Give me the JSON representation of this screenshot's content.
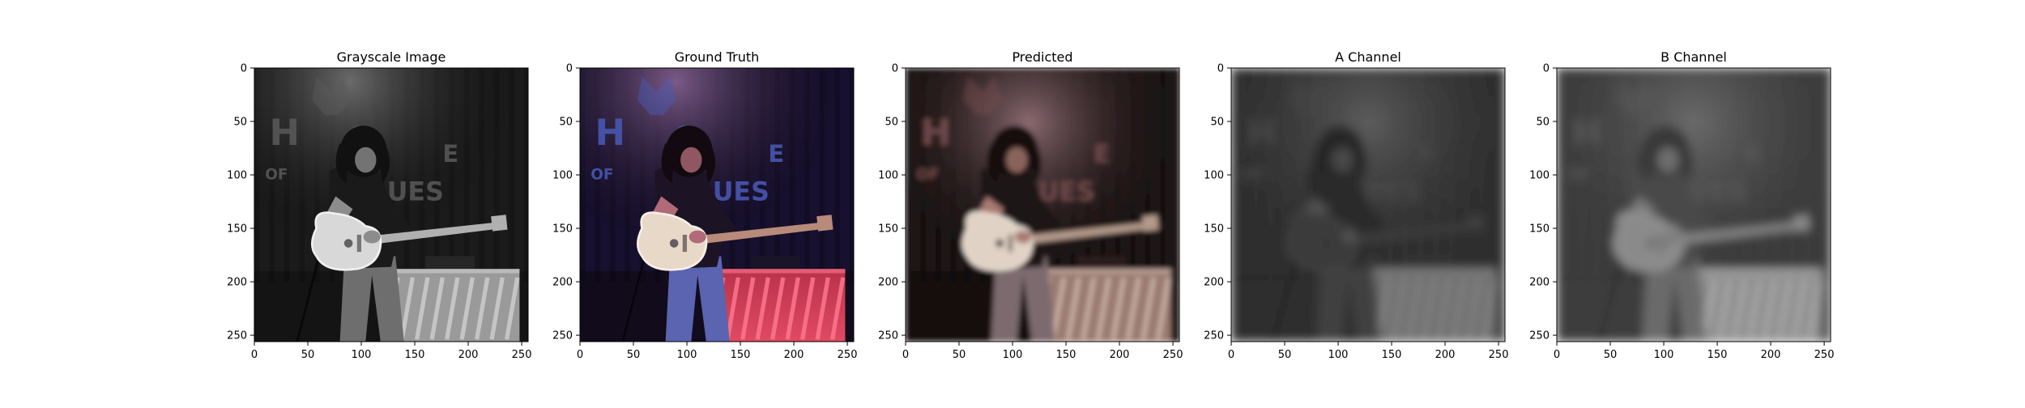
{
  "figure": {
    "panels": [
      {
        "id": "grayscale",
        "title": "Grayscale Image",
        "color_mode": "gray",
        "xticks": [
          "0",
          "50",
          "100",
          "150",
          "200",
          "250"
        ],
        "yticks": [
          "0",
          "50",
          "100",
          "150",
          "200",
          "250"
        ]
      },
      {
        "id": "ground-truth",
        "title": "Ground Truth",
        "color_mode": "color",
        "xticks": [
          "0",
          "50",
          "100",
          "150",
          "200",
          "250"
        ],
        "yticks": [
          "0",
          "50",
          "100",
          "150",
          "200",
          "250"
        ]
      },
      {
        "id": "predicted",
        "title": "Predicted",
        "color_mode": "sepia",
        "xticks": [
          "0",
          "50",
          "100",
          "150",
          "200",
          "250"
        ],
        "yticks": [
          "0",
          "50",
          "100",
          "150",
          "200",
          "250"
        ]
      },
      {
        "id": "a-channel",
        "title": "A Channel",
        "color_mode": "channel-a",
        "xticks": [
          "0",
          "50",
          "100",
          "150",
          "200",
          "250"
        ],
        "yticks": [
          "0",
          "50",
          "100",
          "150",
          "200",
          "250"
        ]
      },
      {
        "id": "b-channel",
        "title": "B Channel",
        "color_mode": "channel-b",
        "xticks": [
          "0",
          "50",
          "100",
          "150",
          "200",
          "250"
        ],
        "yticks": [
          "0",
          "50",
          "100",
          "150",
          "200",
          "250"
        ]
      }
    ],
    "sign_text": [
      "H",
      "O",
      "E",
      "OF",
      "UES"
    ],
    "colors": {
      "axis": "#000000",
      "background": "#ffffff"
    }
  }
}
